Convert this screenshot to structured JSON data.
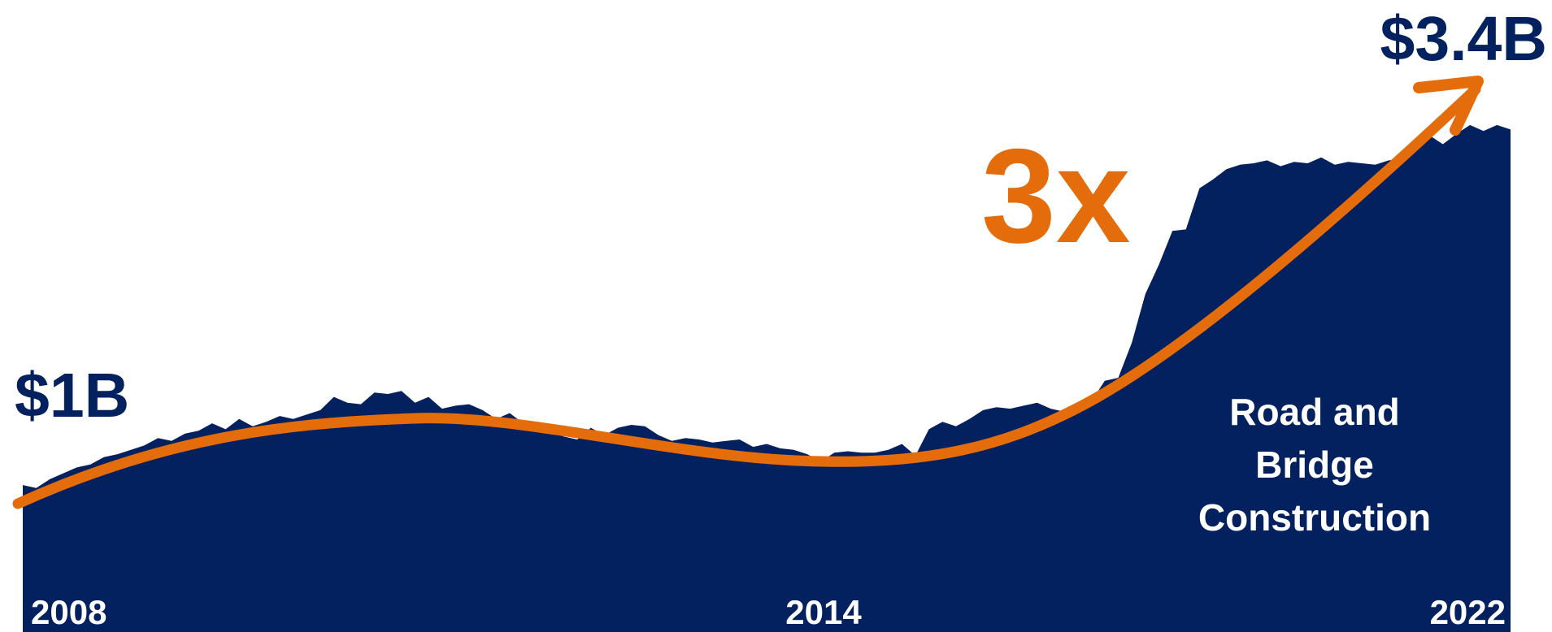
{
  "chart_data": {
    "type": "area",
    "title": "",
    "xlabel": "",
    "ylabel": "",
    "x_ticks": [
      "2008",
      "2014",
      "2022"
    ],
    "start_label": "$1B",
    "end_label": "$3.4B",
    "multiplier_label": "3x",
    "area_label": [
      "Road and",
      "Bridge",
      "Construction"
    ],
    "colors": {
      "area": "#03215F",
      "trend": "#E46C0A",
      "text": "#03215F",
      "area_text": "#FFFFFF"
    },
    "ylim": [
      0,
      4.0
    ],
    "series": [
      {
        "values": [
          1.0,
          0.98,
          1.04,
          1.08,
          1.12,
          1.14,
          1.19,
          1.21,
          1.24,
          1.27,
          1.32,
          1.3,
          1.35,
          1.37,
          1.42,
          1.38,
          1.45,
          1.4,
          1.43,
          1.47,
          1.45,
          1.48,
          1.51,
          1.6,
          1.56,
          1.55,
          1.63,
          1.62,
          1.64,
          1.56,
          1.6,
          1.52,
          1.54,
          1.55,
          1.51,
          1.45,
          1.49,
          1.42,
          1.38,
          1.37,
          1.33,
          1.31,
          1.39,
          1.34,
          1.39,
          1.41,
          1.4,
          1.34,
          1.3,
          1.32,
          1.31,
          1.29,
          1.3,
          1.31,
          1.26,
          1.28,
          1.25,
          1.24,
          1.21,
          1.16,
          1.22,
          1.23,
          1.22,
          1.22,
          1.24,
          1.28,
          1.2,
          1.38,
          1.43,
          1.4,
          1.45,
          1.51,
          1.53,
          1.52,
          1.54,
          1.56,
          1.52,
          1.5,
          1.55,
          1.57,
          1.71,
          1.73,
          1.97,
          2.3,
          2.5,
          2.73,
          2.74,
          3.02,
          3.08,
          3.15,
          3.18,
          3.19,
          3.21,
          3.17,
          3.2,
          3.19,
          3.23,
          3.18,
          3.2,
          3.19,
          3.18,
          3.21,
          3.22,
          3.34,
          3.38,
          3.32,
          3.39,
          3.45,
          3.41,
          3.45,
          3.42
        ]
      }
    ]
  }
}
